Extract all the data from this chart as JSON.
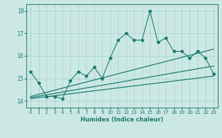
{
  "xlabel": "Humidex (Indice chaleur)",
  "bg_color": "#cce8e4",
  "grid_color": "#aad4cf",
  "line_color": "#1a7a6e",
  "xlim": [
    -0.5,
    23.5
  ],
  "ylim": [
    13.7,
    18.3
  ],
  "x_main": [
    0,
    1,
    2,
    3,
    4,
    5,
    6,
    7,
    8,
    9,
    10,
    11,
    12,
    13,
    14,
    15,
    16,
    17,
    18,
    19,
    20,
    21,
    22,
    23
  ],
  "y_main": [
    15.3,
    14.8,
    14.2,
    14.2,
    14.1,
    14.9,
    15.3,
    15.1,
    15.5,
    15.0,
    15.9,
    16.7,
    17.0,
    16.7,
    16.7,
    18.0,
    16.6,
    16.8,
    16.2,
    16.2,
    15.9,
    16.2,
    15.9,
    15.2
  ],
  "line1": [
    14.2,
    16.3
  ],
  "line2": [
    14.15,
    15.55
  ],
  "line3": [
    14.1,
    15.1
  ],
  "yticks": [
    14,
    15,
    16,
    17,
    18
  ],
  "xticks": [
    0,
    1,
    2,
    3,
    4,
    5,
    6,
    7,
    8,
    9,
    10,
    11,
    12,
    13,
    14,
    15,
    16,
    17,
    18,
    19,
    20,
    21,
    22,
    23
  ],
  "xlabel_fontsize": 6,
  "tick_fontsize": 5,
  "ytick_fontsize": 5.5
}
